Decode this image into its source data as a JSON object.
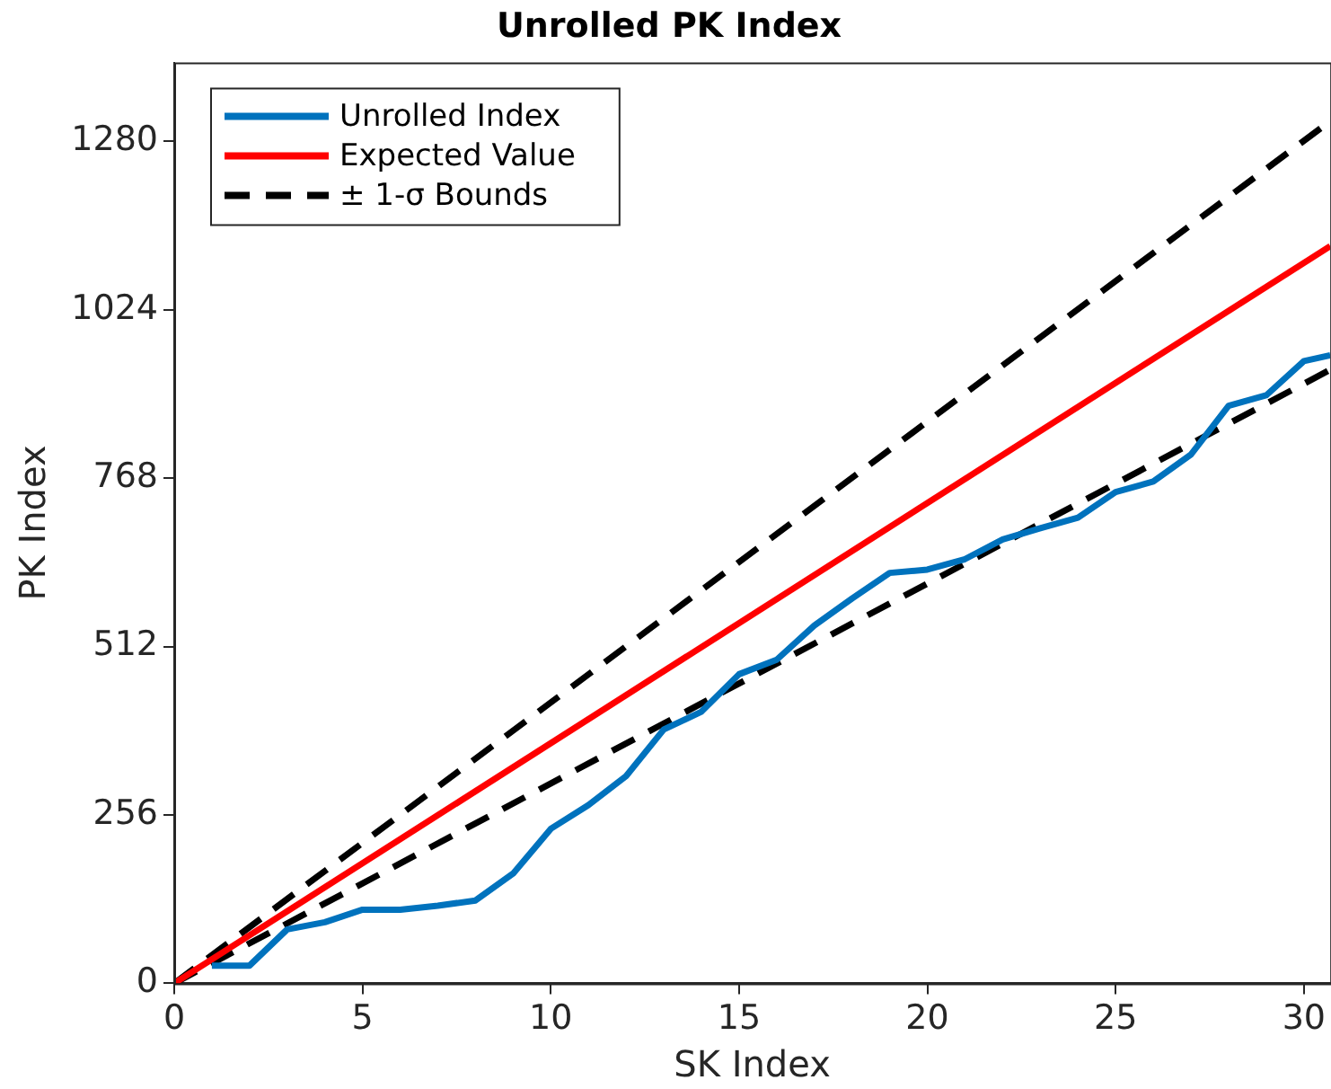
{
  "chart_data": {
    "type": "line",
    "title": "Unrolled PK Index",
    "xlabel": "SK Index",
    "ylabel": "PK Index",
    "xlim": [
      0,
      30.7
    ],
    "xticks": [
      0,
      5,
      10,
      15,
      20,
      25,
      30
    ],
    "ylim": [
      0,
      1400
    ],
    "yticks": [
      0,
      256,
      512,
      768,
      1024,
      1280
    ],
    "grid": false,
    "legend": "top left",
    "marker": "none",
    "series": [
      {
        "name": "Unrolled Index",
        "color": "#0072bd",
        "x": [
          1,
          2,
          3,
          4,
          5,
          6,
          7,
          8,
          9,
          10,
          11,
          12,
          13,
          14,
          15,
          16,
          17,
          18,
          19,
          20,
          21,
          22,
          23,
          24,
          25,
          26,
          27,
          28,
          29,
          30,
          30.7
        ],
        "values": [
          27,
          27,
          82,
          93,
          112,
          112,
          118,
          126,
          167,
          235,
          271,
          315,
          386,
          413,
          470,
          492,
          544,
          585,
          624,
          629,
          645,
          675,
          692,
          708,
          747,
          763,
          804,
          878,
          894,
          946,
          955
        ]
      },
      {
        "name": "Expected Value",
        "color": "#ff0000",
        "x": [
          0,
          30.7
        ],
        "values": [
          0,
          1121
        ]
      },
      {
        "name": "± 1-σ Bounds",
        "color": "#000000",
        "line_style": "dashed",
        "x": [
          0,
          30.7
        ],
        "values": [
          0,
          1311
        ]
      },
      {
        "color": "#000000",
        "line_style": "dashed",
        "x": [
          0,
          30.7
        ],
        "values": [
          0,
          933
        ]
      }
    ]
  }
}
